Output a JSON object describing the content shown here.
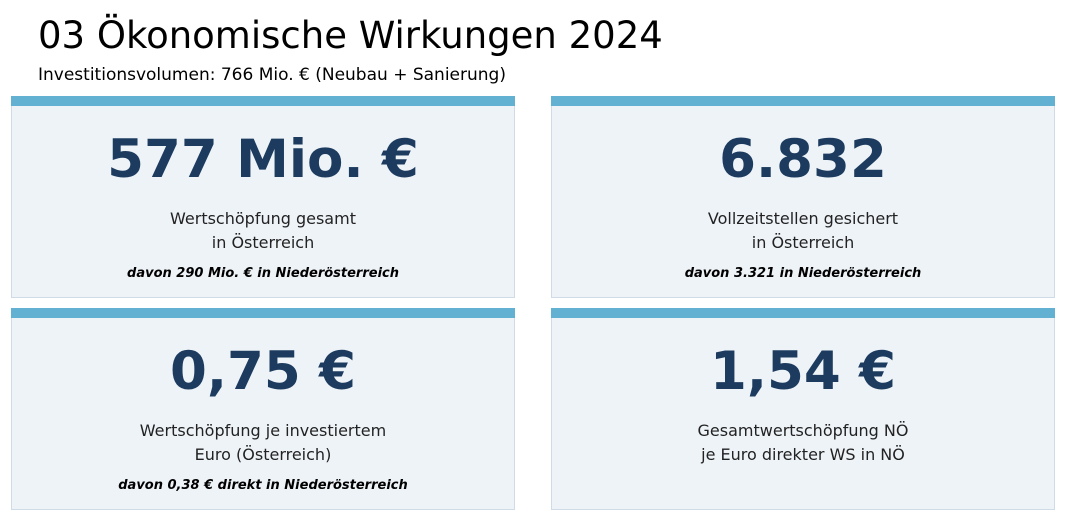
{
  "header": {
    "title": "03 Ökonomische Wirkungen 2024",
    "subtitle": "Investitionsvolumen: 766 Mio. € (Neubau + Sanierung)"
  },
  "cards": [
    {
      "value": "577 Mio. €",
      "label_line1": "Wertschöpfung gesamt",
      "label_line2": "in Österreich",
      "note": "davon 290 Mio. € in Niederösterreich"
    },
    {
      "value": "6.832",
      "label_line1": "Vollzeitstellen gesichert",
      "label_line2": "in Österreich",
      "note": "davon 3.321 in Niederösterreich"
    },
    {
      "value": "0,75 €",
      "label_line1": "Wertschöpfung je investiertem",
      "label_line2": "Euro (Österreich)",
      "note": "davon 0,38 € direkt in Niederösterreich"
    },
    {
      "value": "1,54 €",
      "label_line1": "Gesamtwertschöpfung NÖ",
      "label_line2": "je Euro direkter WS in NÖ"
    }
  ],
  "colors": {
    "accent_bar": "#63b1d2",
    "card_background": "#eef3f8",
    "value_text": "#1c3b5e"
  }
}
